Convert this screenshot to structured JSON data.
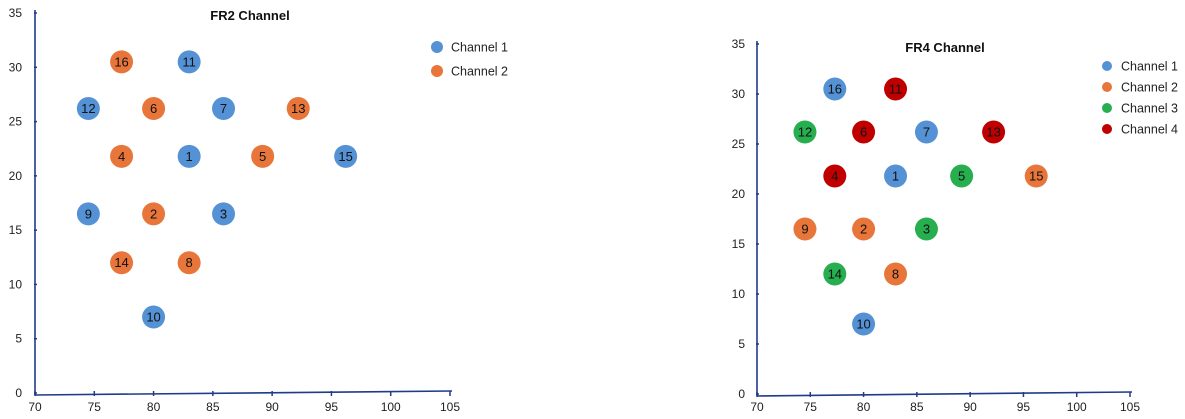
{
  "chart_data": [
    {
      "type": "scatter",
      "title": "FR2 Channel",
      "xlim": [
        70,
        105
      ],
      "ylim": [
        0,
        35
      ],
      "x_ticks": [
        70,
        75,
        80,
        85,
        90,
        95,
        100,
        105
      ],
      "y_ticks": [
        0,
        5,
        10,
        15,
        20,
        25,
        30,
        35
      ],
      "legend_position": "top-right",
      "series": [
        {
          "name": "Channel 1",
          "color": "#5592D5"
        },
        {
          "name": "Channel 2",
          "color": "#E8763A"
        }
      ],
      "points": [
        {
          "label": "16",
          "x": 77.3,
          "y": 30.5,
          "series": 1
        },
        {
          "label": "11",
          "x": 83.0,
          "y": 30.5,
          "series": 0
        },
        {
          "label": "12",
          "x": 74.5,
          "y": 26.2,
          "series": 0
        },
        {
          "label": "6",
          "x": 80.0,
          "y": 26.2,
          "series": 1
        },
        {
          "label": "7",
          "x": 85.9,
          "y": 26.2,
          "series": 0
        },
        {
          "label": "13",
          "x": 92.2,
          "y": 26.2,
          "series": 1
        },
        {
          "label": "4",
          "x": 77.3,
          "y": 21.8,
          "series": 1
        },
        {
          "label": "1",
          "x": 83.0,
          "y": 21.8,
          "series": 0
        },
        {
          "label": "5",
          "x": 89.2,
          "y": 21.8,
          "series": 1
        },
        {
          "label": "15",
          "x": 96.2,
          "y": 21.8,
          "series": 0
        },
        {
          "label": "9",
          "x": 74.5,
          "y": 16.5,
          "series": 0
        },
        {
          "label": "2",
          "x": 80.0,
          "y": 16.5,
          "series": 1
        },
        {
          "label": "3",
          "x": 85.9,
          "y": 16.5,
          "series": 0
        },
        {
          "label": "14",
          "x": 77.3,
          "y": 12.0,
          "series": 1
        },
        {
          "label": "8",
          "x": 83.0,
          "y": 12.0,
          "series": 1
        },
        {
          "label": "10",
          "x": 80.0,
          "y": 7.0,
          "series": 0
        }
      ]
    },
    {
      "type": "scatter",
      "title": "FR4 Channel",
      "xlim": [
        70,
        105
      ],
      "ylim": [
        0,
        35
      ],
      "x_ticks": [
        70,
        75,
        80,
        85,
        90,
        95,
        100,
        105
      ],
      "y_ticks": [
        0,
        5,
        10,
        15,
        20,
        25,
        30,
        35
      ],
      "legend_position": "top-right",
      "series": [
        {
          "name": "Channel 1",
          "color": "#5592D5"
        },
        {
          "name": "Channel 2",
          "color": "#E8763A"
        },
        {
          "name": "Channel 3",
          "color": "#27AE4F"
        },
        {
          "name": "Channel 4",
          "color": "#C00000"
        }
      ],
      "points": [
        {
          "label": "16",
          "x": 77.3,
          "y": 30.5,
          "series": 0
        },
        {
          "label": "11",
          "x": 83.0,
          "y": 30.5,
          "series": 3
        },
        {
          "label": "12",
          "x": 74.5,
          "y": 26.2,
          "series": 2
        },
        {
          "label": "6",
          "x": 80.0,
          "y": 26.2,
          "series": 3
        },
        {
          "label": "7",
          "x": 85.9,
          "y": 26.2,
          "series": 0
        },
        {
          "label": "13",
          "x": 92.2,
          "y": 26.2,
          "series": 3
        },
        {
          "label": "4",
          "x": 77.3,
          "y": 21.8,
          "series": 3
        },
        {
          "label": "1",
          "x": 83.0,
          "y": 21.8,
          "series": 0
        },
        {
          "label": "5",
          "x": 89.2,
          "y": 21.8,
          "series": 2
        },
        {
          "label": "15",
          "x": 96.2,
          "y": 21.8,
          "series": 1
        },
        {
          "label": "9",
          "x": 74.5,
          "y": 16.5,
          "series": 1
        },
        {
          "label": "2",
          "x": 80.0,
          "y": 16.5,
          "series": 1
        },
        {
          "label": "3",
          "x": 85.9,
          "y": 16.5,
          "series": 2
        },
        {
          "label": "14",
          "x": 77.3,
          "y": 12.0,
          "series": 2
        },
        {
          "label": "8",
          "x": 83.0,
          "y": 12.0,
          "series": 1
        },
        {
          "label": "10",
          "x": 80.0,
          "y": 7.0,
          "series": 0
        }
      ]
    }
  ]
}
